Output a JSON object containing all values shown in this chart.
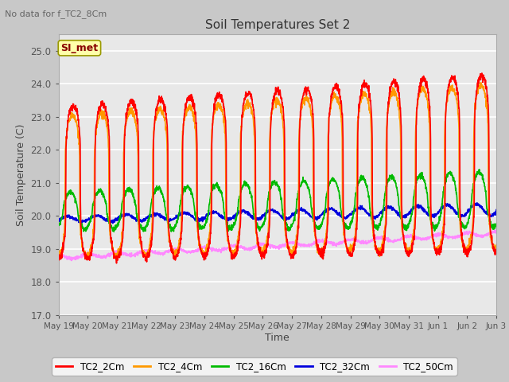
{
  "title": "Soil Temperatures Set 2",
  "no_data_text": "No data for f_TC2_8Cm",
  "xlabel": "Time",
  "ylabel": "Soil Temperature (C)",
  "ylim": [
    17.0,
    25.5
  ],
  "yticks": [
    17.0,
    18.0,
    19.0,
    20.0,
    21.0,
    22.0,
    23.0,
    24.0,
    25.0
  ],
  "legend_label": "SI_met",
  "fig_bg_color": "#c8c8c8",
  "plot_bg_color": "#e8e8e8",
  "grid_color": "#ffffff",
  "line_colors": {
    "TC2_2Cm": "#ff0000",
    "TC2_4Cm": "#ff9900",
    "TC2_16Cm": "#00bb00",
    "TC2_32Cm": "#0000dd",
    "TC2_50Cm": "#ff88ff"
  },
  "num_days": 15,
  "points_per_day": 144,
  "x_tick_labels": [
    "May 19",
    "May 20",
    "May 21",
    "May 22",
    "May 23",
    "May 24",
    "May 25",
    "May 26",
    "May 27",
    "May 28",
    "May 29",
    "May 30",
    "May 31",
    "Jun 1",
    "Jun 2",
    "Jun 3"
  ]
}
